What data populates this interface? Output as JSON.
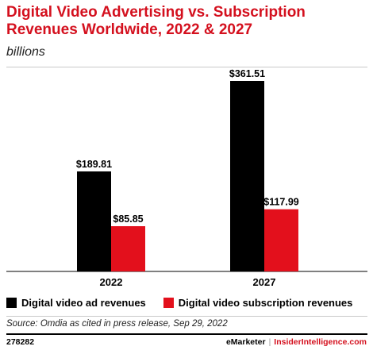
{
  "header": {
    "title": "Digital Video Advertising vs. Subscription Revenues Worldwide, 2022 & 2027",
    "subtitle": "billions"
  },
  "chart_data": {
    "type": "bar",
    "title": "Digital Video Advertising vs. Subscription Revenues Worldwide, 2022 & 2027",
    "subtitle": "billions",
    "categories": [
      "2022",
      "2027"
    ],
    "series": [
      {
        "name": "Digital video ad revenues",
        "values": [
          189.81,
          361.51
        ],
        "labels": [
          "$189.81",
          "$361.51"
        ],
        "color": "#000000"
      },
      {
        "name": "Digital video subscription revenues",
        "values": [
          85.85,
          117.99
        ],
        "labels": [
          "$85.85",
          "$117.99"
        ],
        "color": "#e3101c"
      }
    ],
    "ylim": [
      0,
      361.51
    ],
    "grid": false,
    "legend": "bottom-left"
  },
  "footer": {
    "source": "Source: Omdia as cited in press release, Sep 29, 2022",
    "chart_id": "278282",
    "brand_left": "eMarketer",
    "brand_sep": "|",
    "brand_right": "InsiderIntelligence.com"
  }
}
